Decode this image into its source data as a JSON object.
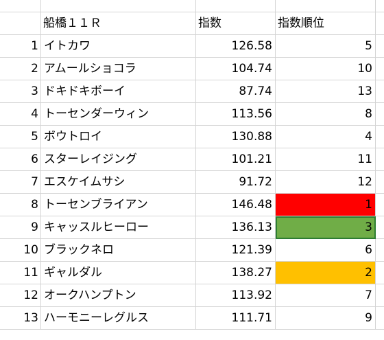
{
  "header": {
    "title": "船橋１１Ｒ",
    "index_label": "指数",
    "rank_label": "指数順位"
  },
  "rows": [
    {
      "no": "1",
      "name": "イトカワ",
      "index": "126.58",
      "rank": "5"
    },
    {
      "no": "2",
      "name": "アムールショコラ",
      "index": "104.74",
      "rank": "10"
    },
    {
      "no": "3",
      "name": "ドキドキボーイ",
      "index": "87.74",
      "rank": "13"
    },
    {
      "no": "4",
      "name": "トーセンダーウィン",
      "index": "113.56",
      "rank": "8"
    },
    {
      "no": "5",
      "name": "ボウトロイ",
      "index": "130.88",
      "rank": "4"
    },
    {
      "no": "6",
      "name": "スターレイジング",
      "index": "101.21",
      "rank": "11"
    },
    {
      "no": "7",
      "name": "エスケイムサシ",
      "index": "91.72",
      "rank": "12"
    },
    {
      "no": "8",
      "name": "トーセンブライアン",
      "index": "146.48",
      "rank": "1"
    },
    {
      "no": "9",
      "name": "キャッスルヒーロー",
      "index": "136.13",
      "rank": "3"
    },
    {
      "no": "10",
      "name": "ブラックネロ",
      "index": "121.39",
      "rank": "6"
    },
    {
      "no": "11",
      "name": "ギャルダル",
      "index": "138.27",
      "rank": "2"
    },
    {
      "no": "12",
      "name": "オークハンプトン",
      "index": "113.92",
      "rank": "7"
    },
    {
      "no": "13",
      "name": "ハーモニーレグルス",
      "index": "111.71",
      "rank": "9"
    }
  ],
  "highlight_colors": {
    "rank_1": "#ff0000",
    "rank_2": "#ffc000",
    "rank_3": "#70ad47"
  }
}
